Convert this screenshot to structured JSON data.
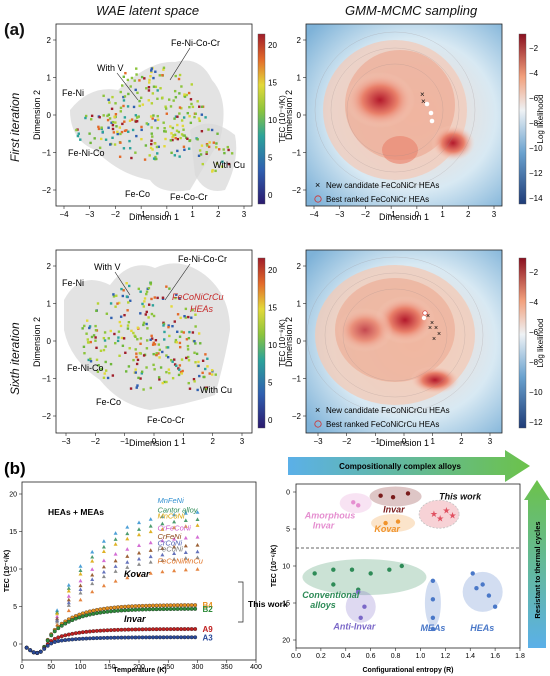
{
  "panel_a": {
    "label": "(a)",
    "col_headers": [
      "WAE latent space",
      "GMM-MCMC sampling"
    ],
    "row_labels": [
      "First iteration",
      "Sixth iteration"
    ],
    "latent": {
      "xlabel": "Dimension 1",
      "ylabel": "Dimension 2",
      "cbar_label": "TEC (10⁻⁶/K)",
      "cbar_ticks": [
        "20",
        "15",
        "10",
        "5",
        "0"
      ],
      "xticks_first": [
        "−4",
        "−3",
        "−2",
        "−1",
        "0",
        "1",
        "2",
        "3"
      ],
      "yticks_first": [
        "2",
        "1",
        "0",
        "−1",
        "−2"
      ],
      "xticks_sixth": [
        "−3",
        "−2",
        "−1",
        "0",
        "1",
        "2",
        "3"
      ],
      "yticks_sixth": [
        "2",
        "1",
        "0",
        "−1",
        "−2"
      ],
      "labels_first": [
        "Fe-Ni",
        "With V",
        "Fe-Ni-Co-Cr",
        "Fe-Ni-Co",
        "Fe-Co",
        "Fe-Co-Cr",
        "With Cu"
      ],
      "labels_sixth": [
        "Fe-Ni",
        "With V",
        "Fe-Ni-Co-Cr",
        "Fe-Ni-Co",
        "Fe-Co",
        "Fe-Co-Cr",
        "With Cu"
      ],
      "highlight_sixth": "FeCoNiCrCu HEAs"
    },
    "gmm": {
      "xlabel": "Dimension 1",
      "ylabel": "Dimension 2",
      "cbar_label": "Log likelihood",
      "cbar_ticks_first": [
        "−2",
        "−4",
        "−6",
        "−8",
        "−10",
        "−12",
        "−14"
      ],
      "cbar_ticks_sixth": [
        "−2",
        "−4",
        "−6",
        "−8",
        "−10",
        "−12"
      ],
      "xticks_first": [
        "−4",
        "−3",
        "−2",
        "−1",
        "0",
        "1",
        "2",
        "3"
      ],
      "xticks_sixth": [
        "−3",
        "−2",
        "−1",
        "0",
        "1",
        "2",
        "3"
      ],
      "yticks": [
        "2",
        "1",
        "0",
        "−1",
        "−2"
      ],
      "legend_first": [
        "New candidate FeCoNiCr HEAs",
        "Best ranked FeCoNiCr HEAs"
      ],
      "legend_sixth": [
        "New candidate FeCoNiCrCu HEAs",
        "Best ranked FeCoNiCrCu HEAs"
      ]
    }
  },
  "panel_b": {
    "label": "(b)",
    "left": {
      "xlabel": "Temperature (K)",
      "ylabel": "TEC (10⁻⁶/K)",
      "xticks": [
        "0",
        "50",
        "100",
        "150",
        "200",
        "250",
        "300",
        "350",
        "400"
      ],
      "yticks": [
        "20",
        "15",
        "10",
        "5",
        "0"
      ],
      "group_label": "HEAs + MEAs",
      "alloys": [
        {
          "name": "MnFeNi",
          "color": "#2f8fd0"
        },
        {
          "name": "Cantor alloy",
          "color": "#2e8b57"
        },
        {
          "name": "MnCoNi",
          "color": "#d9a400"
        },
        {
          "name": "CrFeCoNi",
          "color": "#cc55cc"
        },
        {
          "name": "CrFeNi",
          "color": "#8b4513"
        },
        {
          "name": "CrCoNi",
          "color": "#4a5ab0"
        },
        {
          "name": "FeCoNi",
          "color": "#777777"
        },
        {
          "name": "FeCoNiMnCu",
          "color": "#e07020"
        }
      ],
      "kovar_label": "Kovar",
      "invar_label": "Invar",
      "this_work_label": "This work",
      "samples": [
        {
          "name": "B4",
          "color": "#e69020"
        },
        {
          "name": "B2",
          "color": "#2e8b3a"
        },
        {
          "name": "A9",
          "color": "#c02020"
        },
        {
          "name": "A3",
          "color": "#2a4a9a"
        }
      ]
    },
    "right": {
      "banner_top": "Compositionally complex alloys",
      "banner_side": "Resistant to thermal cycles",
      "xlabel": "Configurational entropy (R)",
      "ylabel": "TEC (10⁻⁶/K)",
      "xticks": [
        "0.0",
        "0.2",
        "0.4",
        "0.6",
        "0.8",
        "1.0",
        "1.2",
        "1.4",
        "1.6",
        "1.8"
      ],
      "yticks": [
        "0",
        "5",
        "10",
        "15",
        "20"
      ],
      "groups": [
        {
          "name": "Amorphous Invar",
          "color": "#e58fd0"
        },
        {
          "name": "Invar",
          "color": "#7a1c1c"
        },
        {
          "name": "Kovar",
          "color": "#f0932b"
        },
        {
          "name": "This work",
          "color": "#e05060"
        },
        {
          "name": "Conventional alloys",
          "color": "#2e8b57"
        },
        {
          "name": "Anti-Invar",
          "color": "#7b68c8"
        },
        {
          "name": "MEAs",
          "color": "#4a78c8"
        },
        {
          "name": "HEAs",
          "color": "#4a78c8"
        }
      ]
    }
  }
}
